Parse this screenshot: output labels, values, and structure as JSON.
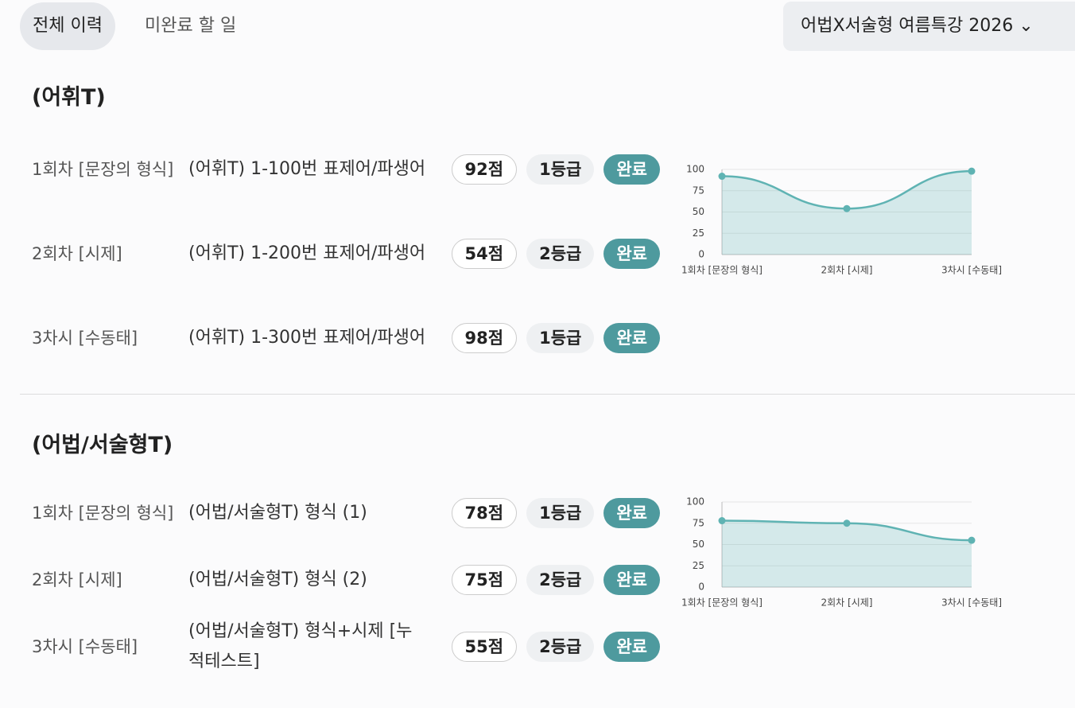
{
  "tabs": [
    "전체 이력",
    "미완료 할 일"
  ],
  "dropdown": {
    "label": "어법X서술형 여름특강 2026"
  },
  "sections": [
    {
      "title": "(어휘T)",
      "rows": [
        {
          "label": "1회차 [문장의 형식]",
          "title": "(어휘T) 1-100번 표제어/파생어",
          "score": "92점",
          "grade": "1등급",
          "status": "완료"
        },
        {
          "label": "2회차 [시제]",
          "title": "(어휘T) 1-200번 표제어/파생어",
          "score": "54점",
          "grade": "2등급",
          "status": "완료"
        },
        {
          "label": "3차시 [수동태]",
          "title": "(어휘T) 1-300번 표제어/파생어",
          "score": "98점",
          "grade": "1등급",
          "status": "완료"
        }
      ],
      "chart_data": {
        "type": "line",
        "categories": [
          "1회차 [문장의 형식]",
          "2회차 [시제]",
          "3차시 [수동태]"
        ],
        "values": [
          92,
          54,
          98
        ],
        "color": "#5fb3b3",
        "ylim": [
          0,
          100
        ],
        "yticks": [
          0,
          25,
          50,
          75,
          100
        ],
        "grid": true
      }
    },
    {
      "title": "(어법/서술형T)",
      "rows": [
        {
          "label": "1회차 [문장의 형식]",
          "title": "(어법/서술형T) 형식 (1)",
          "score": "78점",
          "grade": "1등급",
          "status": "완료"
        },
        {
          "label": "2회차 [시제]",
          "title": "(어법/서술형T) 형식 (2)",
          "score": "75점",
          "grade": "2등급",
          "status": "완료"
        },
        {
          "label": "3차시 [수동태]",
          "title": "(어법/서술형T) 형식+시제 [누적테스트]",
          "score": "55점",
          "grade": "2등급",
          "status": "완료"
        }
      ],
      "chart_data": {
        "type": "line",
        "categories": [
          "1회차 [문장의 형식]",
          "2회차 [시제]",
          "3차시 [수동태]"
        ],
        "values": [
          78,
          75,
          55
        ],
        "color": "#5fb3b3",
        "ylim": [
          0,
          100
        ],
        "yticks": [
          0,
          25,
          50,
          75,
          100
        ],
        "grid": true
      }
    }
  ]
}
